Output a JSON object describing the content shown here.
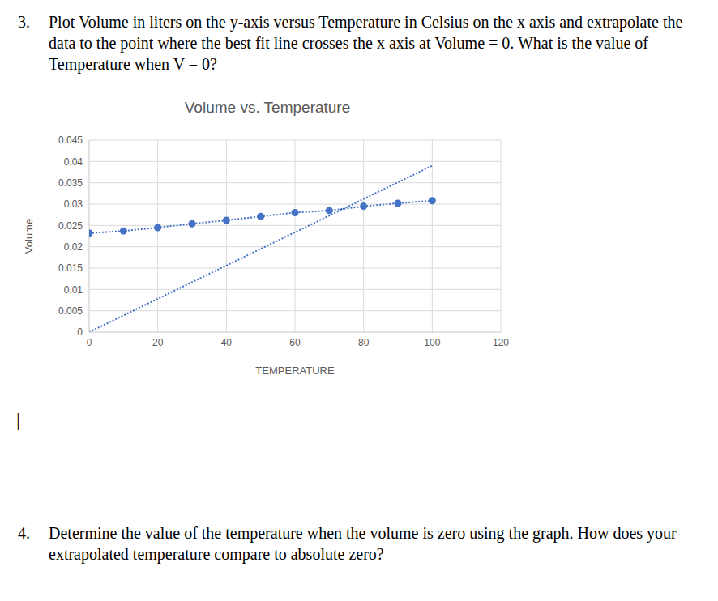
{
  "questions": [
    {
      "number": "3.",
      "text": "Plot Volume in liters on the y-axis versus Temperature in Celsius on the x axis and extrapolate the data to the point where the best fit line crosses the x axis at Volume = 0. What is the value of Temperature when V = 0?"
    },
    {
      "number": "4.",
      "text": "Determine the value of the temperature when the volume is zero using the graph. How does your extrapolated temperature compare to absolute zero?"
    }
  ],
  "cursor": "|",
  "chart_data": {
    "type": "scatter",
    "title": "Volume vs. Temperature",
    "x_label": "TEMPERATURE",
    "y_label": "Volume",
    "xlim": [
      0,
      120
    ],
    "xticks": [
      0,
      20,
      40,
      60,
      80,
      100,
      120
    ],
    "ylim": [
      0,
      0.045
    ],
    "yticks": [
      0,
      0.005,
      0.01,
      0.015,
      0.02,
      0.025,
      0.03,
      0.035,
      0.04,
      0.045
    ],
    "grid": true,
    "series": [
      {
        "type": "scatter",
        "color": "#4472c4",
        "marker": "circle",
        "line_style": "dotted",
        "x": [
          0,
          10,
          20,
          30,
          40,
          50,
          60,
          70,
          80,
          90,
          100
        ],
        "values": [
          0.0232,
          0.0237,
          0.0245,
          0.0254,
          0.0262,
          0.0271,
          0.028,
          0.0285,
          0.0295,
          0.0302,
          0.0308
        ]
      },
      {
        "type": "line",
        "color": "#4472c4",
        "line_style": "dotted",
        "x": [
          0,
          100
        ],
        "values": [
          0,
          0.039
        ]
      }
    ]
  }
}
